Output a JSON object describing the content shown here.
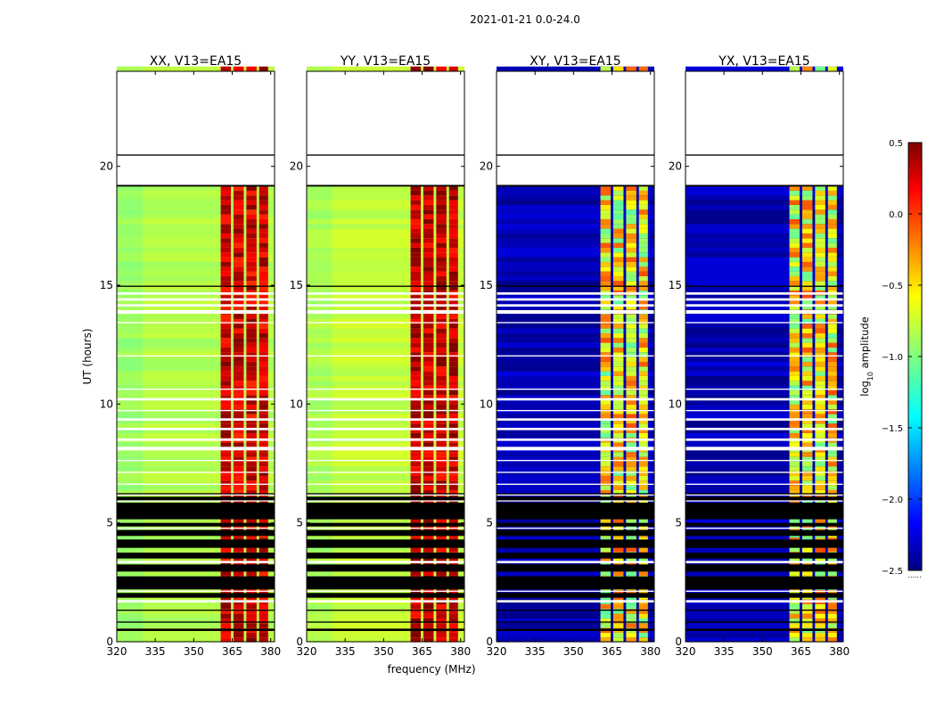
{
  "figure": {
    "suptitle": "2021-01-21 0.0-24.0",
    "xlabel": "frequency (MHz)",
    "ylabel": "UT (hours)"
  },
  "colorbar": {
    "label_prefix": "log",
    "label_sub": "10",
    "label_suffix": " amplitude",
    "ticks": [
      "0.5",
      "0.0",
      "−0.5",
      "−1.0",
      "−1.5",
      "−2.0",
      "−2.5"
    ],
    "tick_values": [
      0.5,
      0.0,
      -0.5,
      -1.0,
      -1.5,
      -2.0,
      -2.5
    ],
    "range": [
      -2.5,
      0.5
    ],
    "colormap": "jet",
    "dots_label": "......"
  },
  "chart_data": {
    "type": "heatmap",
    "x_range_mhz": [
      320,
      381.5
    ],
    "y_range_hours": [
      0,
      24
    ],
    "xticks": [
      320,
      335,
      350,
      365,
      380
    ],
    "xtick_labels": [
      "320",
      "335",
      "350",
      "365",
      "380"
    ],
    "yticks": [
      0,
      5,
      10,
      15,
      20
    ],
    "ytick_labels": [
      "0",
      "5",
      "10",
      "15",
      "20"
    ],
    "rfi_band_mhz": [
      360.5,
      379
    ],
    "flag_color": "#000000",
    "gap_hours": [
      [
        19.2,
        24.0,
        15.0,
        19.2
      ]
    ],
    "panels": [
      {
        "title": "XX, V13=EA15",
        "kind": "parallel",
        "base_value": -0.85,
        "band_value": 0.25
      },
      {
        "title": "YY, V13=EA15",
        "kind": "parallel",
        "base_value": -0.8,
        "band_value": 0.3
      },
      {
        "title": "XY, V13=EA15",
        "kind": "cross",
        "base_value": -2.35,
        "band_value": -0.6
      },
      {
        "title": "YX, V13=EA15",
        "kind": "cross",
        "base_value": -2.35,
        "band_value": -0.6
      }
    ],
    "flagged_hours": [
      [
        0.45,
        0.55
      ],
      [
        0.8,
        0.85
      ],
      [
        1.3,
        1.35
      ],
      [
        1.85,
        2.05
      ],
      [
        2.2,
        2.75
      ],
      [
        2.95,
        3.25
      ],
      [
        3.5,
        3.75
      ],
      [
        3.95,
        4.3
      ],
      [
        4.45,
        4.7
      ],
      [
        4.85,
        5.0
      ],
      [
        5.15,
        5.85
      ],
      [
        5.95,
        6.1
      ],
      [
        6.2,
        6.25
      ]
    ],
    "white_gap_hours": [
      [
        1.65,
        1.75
      ],
      [
        2.1,
        2.15
      ],
      [
        3.3,
        3.4
      ],
      [
        4.75,
        4.8
      ],
      [
        5.9,
        5.95
      ],
      [
        6.15,
        6.2
      ],
      [
        6.6,
        6.65
      ],
      [
        7.1,
        7.15
      ],
      [
        7.6,
        7.65
      ],
      [
        8.05,
        8.2
      ],
      [
        8.45,
        8.55
      ],
      [
        8.9,
        9.0
      ],
      [
        9.3,
        9.4
      ],
      [
        9.7,
        9.75
      ],
      [
        10.15,
        10.25
      ],
      [
        10.6,
        10.65
      ],
      [
        12.0,
        12.05
      ],
      [
        13.4,
        13.45
      ],
      [
        13.8,
        13.95
      ],
      [
        14.1,
        14.2
      ],
      [
        14.35,
        14.45
      ],
      [
        14.6,
        14.7
      ],
      [
        19.8,
        19.85
      ],
      [
        20.3,
        20.5
      ],
      [
        20.7,
        20.75
      ],
      [
        21.3,
        21.45
      ],
      [
        21.7,
        21.9
      ],
      [
        22.3,
        22.45
      ],
      [
        22.7,
        22.85
      ],
      [
        23.1,
        23.2
      ],
      [
        23.5,
        23.55
      ]
    ]
  }
}
